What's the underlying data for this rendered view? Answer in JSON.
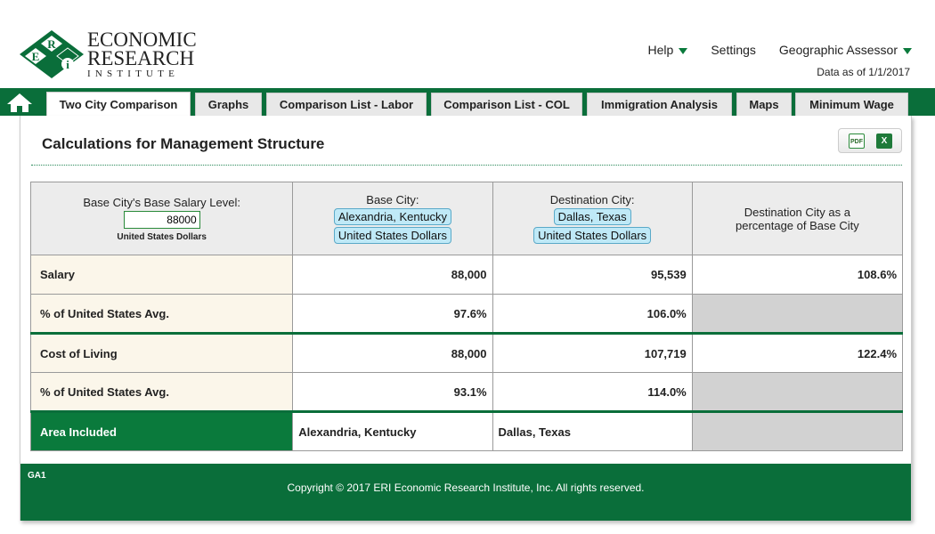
{
  "logo": {
    "line1": "ECONOMIC",
    "line2": "RESEARCH",
    "line3": "INSTITUTE",
    "letters": [
      "E",
      "R",
      "i"
    ]
  },
  "topnav": {
    "help": "Help",
    "settings": "Settings",
    "product": "Geographic Assessor",
    "data_as_of": "Data as of 1/1/2017"
  },
  "tabs": [
    {
      "label": "Two City Comparison",
      "active": true
    },
    {
      "label": "Graphs"
    },
    {
      "label": "Comparison List - Labor"
    },
    {
      "label": "Comparison List - COL"
    },
    {
      "label": "Immigration Analysis"
    },
    {
      "label": "Maps"
    },
    {
      "label": "Minimum Wage"
    }
  ],
  "page": {
    "title": "Calculations for Management Structure",
    "export_pdf": "PDF",
    "export_xls": "X"
  },
  "header": {
    "base_salary_label": "Base City's Base Salary Level:",
    "base_salary_value": "88000",
    "base_currency": "United States Dollars",
    "base_city_label": "Base City:",
    "base_city": "Alexandria, Kentucky",
    "base_city_currency": "United States Dollars",
    "dest_city_label": "Destination City:",
    "dest_city": "Dallas, Texas",
    "dest_city_currency": "United States Dollars",
    "pct_col_line1": "Destination City as a",
    "pct_col_line2": "percentage of Base City"
  },
  "rows": [
    {
      "label": "Salary",
      "base": "88,000",
      "dest": "95,539",
      "pct": "108.6%"
    },
    {
      "label": "% of United States Avg.",
      "base": "97.6%",
      "dest": "106.0%",
      "pct": ""
    },
    {
      "label": "Cost of Living",
      "base": "88,000",
      "dest": "107,719",
      "pct": "122.4%"
    },
    {
      "label": "% of United States Avg.",
      "base": "93.1%",
      "dest": "114.0%",
      "pct": ""
    }
  ],
  "area": {
    "label": "Area Included",
    "base": "Alexandria, Kentucky",
    "dest": "Dallas, Texas"
  },
  "footer": {
    "code": "GA1",
    "copyright": "Copyright © 2017 ERI Economic Research Institute, Inc. All rights reserved."
  },
  "colors": {
    "brand_green": "#0a6e3a",
    "pill_blue": "#bfe9f7"
  }
}
